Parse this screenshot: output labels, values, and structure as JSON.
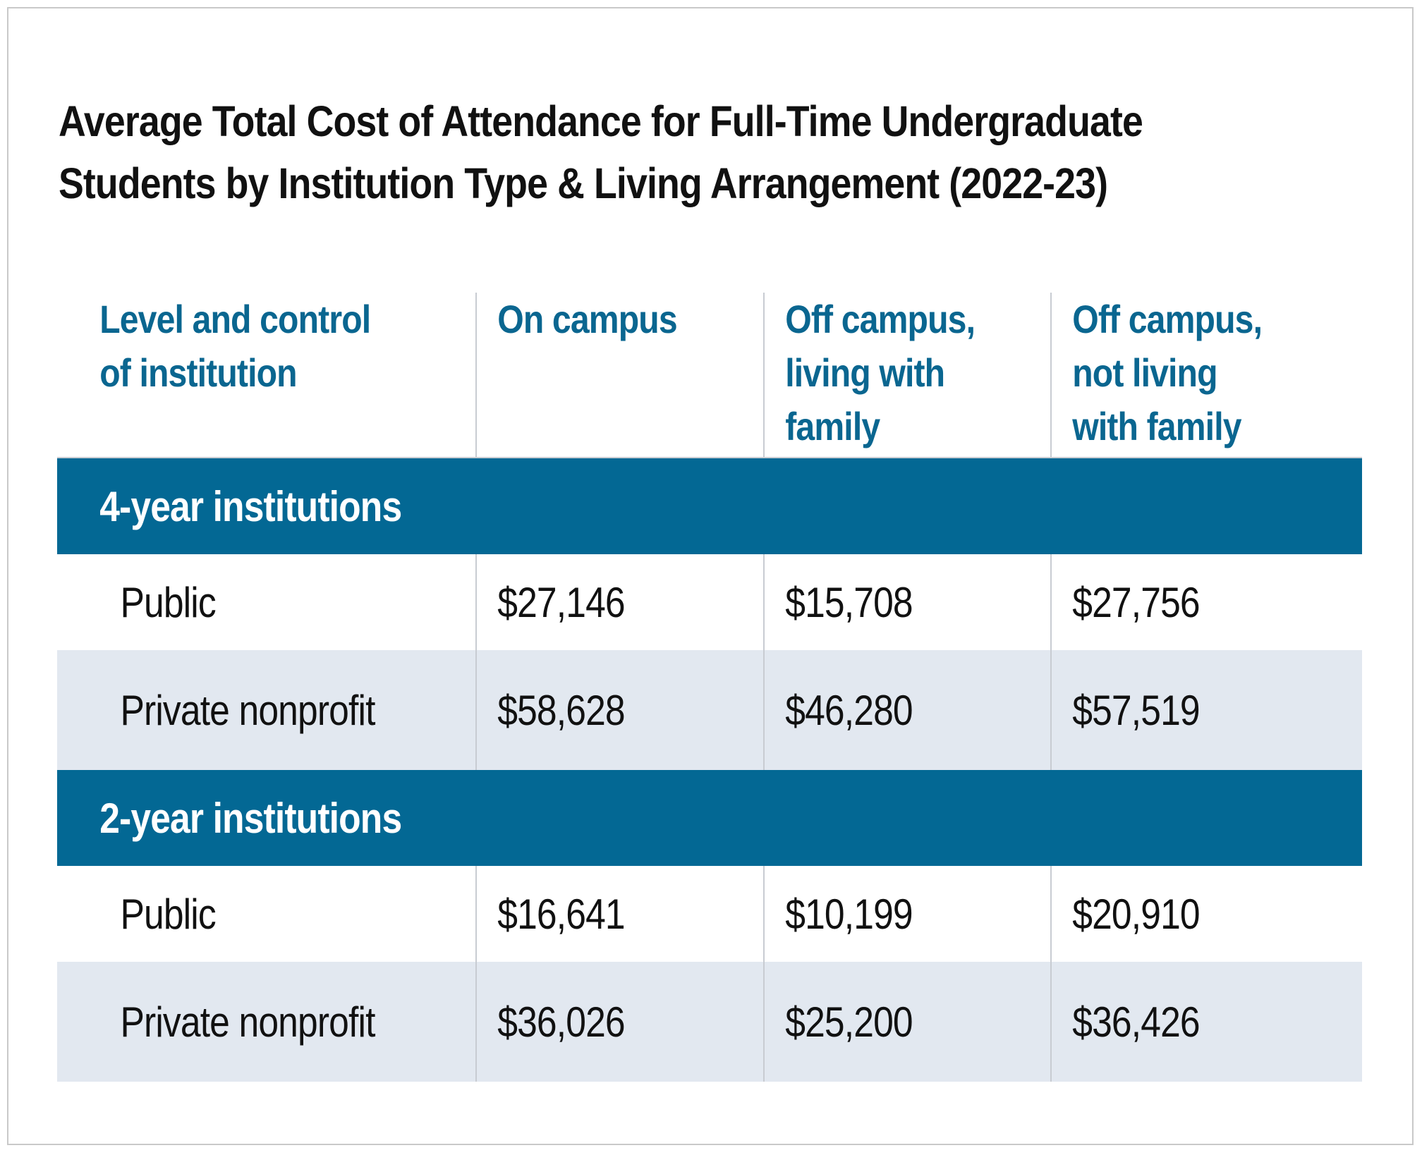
{
  "chart_data": {
    "type": "table",
    "title": "Average Total Cost of Attendance for Full-Time Undergraduate Students by Institution Type & Living Arrangement (2022-23)",
    "title_lines": [
      "Average Total Cost of Attendance for Full-Time Undergraduate",
      "Students by Institution Type & Living Arrangement (2022-23)"
    ],
    "columns": [
      "Level and control\nof institution",
      "On campus",
      "Off campus,\nliving with\nfamily",
      "Off campus,\nnot living\nwith family"
    ],
    "groups": [
      {
        "label": "4-year institutions",
        "rows": [
          {
            "label": "Public",
            "values": [
              "$27,146",
              "$15,708",
              "$27,756"
            ]
          },
          {
            "label": "Private nonprofit",
            "values": [
              "$58,628",
              "$46,280",
              "$57,519"
            ]
          }
        ]
      },
      {
        "label": "2-year institutions",
        "rows": [
          {
            "label": "Public",
            "values": [
              "$16,641",
              "$10,199",
              "$20,910"
            ]
          },
          {
            "label": "Private nonprofit",
            "values": [
              "$36,026",
              "$25,200",
              "$36,426"
            ]
          }
        ]
      }
    ]
  },
  "colors": {
    "header_text": "#0a6690",
    "group_banner": "#036894",
    "alt_row": "#e2e8f0",
    "separator": "#c8ccd2"
  }
}
